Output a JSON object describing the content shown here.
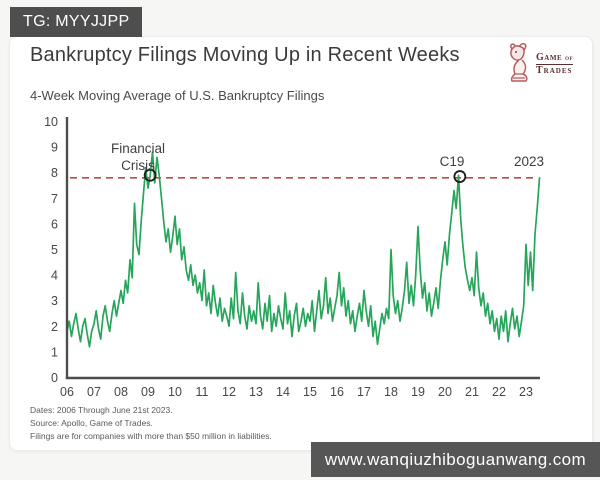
{
  "badge": {
    "label": "TG: MYYJJPP"
  },
  "header": {
    "title": "Bankruptcy Filings Moving Up in Recent Weeks"
  },
  "logo": {
    "line1": "Game",
    "of": "of",
    "line2": "Trades",
    "icon": "bull-chess-knight-icon"
  },
  "subtitle": "4-Week Moving Average of U.S. Bankruptcy Filings",
  "chart_data": {
    "type": "line",
    "title": "4-Week Moving Average of U.S. Bankruptcy Filings",
    "xlabel": "",
    "ylabel": "",
    "xlim": [
      2006,
      2023.6
    ],
    "ylim": [
      0,
      10
    ],
    "grid": false,
    "legend": "none",
    "x_tick_labels": [
      "06",
      "07",
      "08",
      "09",
      "10",
      "11",
      "12",
      "13",
      "14",
      "15",
      "16",
      "17",
      "18",
      "19",
      "20",
      "21",
      "22",
      "23"
    ],
    "x_tick_years": [
      2006,
      2007,
      2008,
      2009,
      2010,
      2011,
      2012,
      2013,
      2014,
      2015,
      2016,
      2017,
      2018,
      2019,
      2020,
      2021,
      2022,
      2023
    ],
    "y_ticks": [
      0,
      1,
      2,
      3,
      4,
      5,
      6,
      7,
      8,
      9,
      10
    ],
    "line_color": "#27a55b",
    "axis_color": "#4d4d4d",
    "reference_line": {
      "value": 7.8,
      "color": "#bf4a3e",
      "style": "dashed"
    },
    "markers": [
      {
        "x": 2009.08,
        "y": 7.9,
        "label": "Financial Crisis"
      },
      {
        "x": 2020.55,
        "y": 7.85,
        "label": "C19"
      }
    ],
    "annotations": [
      {
        "lines": [
          "Financial",
          "Crisis"
        ],
        "x": 2008.63,
        "y": 8.77
      },
      {
        "lines": [
          "C19"
        ],
        "x": 2020.26,
        "y": 8.26
      },
      {
        "lines": [
          "2023"
        ],
        "x": 2023.11,
        "y": 8.26
      }
    ],
    "series": [
      {
        "name": "4-week moving average of U.S. bankruptcy filings",
        "start_year": 2006.0,
        "step_years": 0.08333,
        "values": [
          1.8,
          2.2,
          1.6,
          2.1,
          2.5,
          1.9,
          1.4,
          2.0,
          2.3,
          1.7,
          1.2,
          1.8,
          2.1,
          2.6,
          1.9,
          1.5,
          2.4,
          2.8,
          2.2,
          1.8,
          2.5,
          3.0,
          2.4,
          2.9,
          3.4,
          2.9,
          3.8,
          3.3,
          4.6,
          3.9,
          6.8,
          5.2,
          4.8,
          6.1,
          7.2,
          8.2,
          7.4,
          7.9,
          8.8,
          7.6,
          8.6,
          7.9,
          7.0,
          6.1,
          5.3,
          5.8,
          4.9,
          5.5,
          6.3,
          5.2,
          5.8,
          4.6,
          5.1,
          4.2,
          3.8,
          4.4,
          3.6,
          4.0,
          3.3,
          3.7,
          3.0,
          4.2,
          2.8,
          3.3,
          2.5,
          3.6,
          2.9,
          2.4,
          3.1,
          2.2,
          2.7,
          2.4,
          2.0,
          3.1,
          2.3,
          4.1,
          2.6,
          2.1,
          3.3,
          2.4,
          1.9,
          2.8,
          2.2,
          2.6,
          2.1,
          3.7,
          2.4,
          1.9,
          2.9,
          2.2,
          3.2,
          1.8,
          2.5,
          2.0,
          2.8,
          2.3,
          1.9,
          3.3,
          2.1,
          2.6,
          1.6,
          2.4,
          2.9,
          1.8,
          2.2,
          2.7,
          2.0,
          2.5,
          2.2,
          3.0,
          1.8,
          2.6,
          3.4,
          2.3,
          2.8,
          3.9,
          2.5,
          3.1,
          2.2,
          2.7,
          3.2,
          4.1,
          2.8,
          3.5,
          2.4,
          3.0,
          2.1,
          2.6,
          1.8,
          2.4,
          2.9,
          2.2,
          3.4,
          2.6,
          2.0,
          2.8,
          1.6,
          2.2,
          1.3,
          1.9,
          2.5,
          2.1,
          2.7,
          2.3,
          5.0,
          3.2,
          2.5,
          3.0,
          2.2,
          2.7,
          3.4,
          4.5,
          2.9,
          3.6,
          2.8,
          4.0,
          5.9,
          4.2,
          3.1,
          3.7,
          2.6,
          3.3,
          2.4,
          2.9,
          3.5,
          2.7,
          3.8,
          4.6,
          5.3,
          4.4,
          5.6,
          6.4,
          7.3,
          6.6,
          7.9,
          6.2,
          5.1,
          4.3,
          3.8,
          3.4,
          3.9,
          3.2,
          4.9,
          3.5,
          2.8,
          3.3,
          2.4,
          2.9,
          2.1,
          2.6,
          1.8,
          2.3,
          1.5,
          2.4,
          1.8,
          2.6,
          1.4,
          2.1,
          2.7,
          1.9,
          2.4,
          1.6,
          2.2,
          2.8,
          5.2,
          3.6,
          4.9,
          3.4,
          5.6,
          6.6,
          7.8
        ]
      }
    ]
  },
  "footnotes": [
    "Dates: 2006 Through June 21st 2023.",
    "Source: Apollo, Game of Trades.",
    "Filings are for companies with more than $50 million in liabilities."
  ],
  "watermark": "www.wanqiuzhiboguanwang.com"
}
